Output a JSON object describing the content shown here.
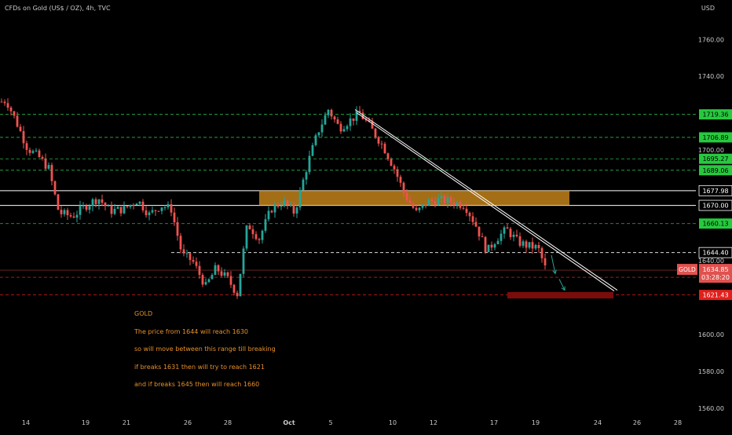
{
  "header": {
    "symbol": "CFDs on Gold (US$ / OZ), 4h, TVC",
    "currency": "USD"
  },
  "colors": {
    "up": "#26a69a",
    "down": "#ef5350",
    "level_green": "#2db84a",
    "level_red": "#e0201c",
    "zone": "#d9931e",
    "annotation": "#e8902a"
  },
  "chart_data": {
    "type": "candlestick",
    "title": "CFDs on Gold (US$ / OZ), 4h, TVC",
    "ylim": [
      1548,
      1778
    ],
    "y_ticks": [
      {
        "value": 1760,
        "label": "1760.00"
      },
      {
        "value": 1740,
        "label": "1740.00"
      },
      {
        "value": 1700,
        "label": "1700.00"
      },
      {
        "value": 1640,
        "label": "1640.00"
      },
      {
        "value": 1600,
        "label": "1600.00"
      },
      {
        "value": 1580,
        "label": "1580.00"
      },
      {
        "value": 1560,
        "label": "1560.00"
      }
    ],
    "x_ticks": [
      "14",
      "19",
      "21",
      "26",
      "28",
      "Oct",
      "5",
      "10",
      "12",
      "17",
      "19",
      "24",
      "26",
      "28"
    ],
    "path": [
      [
        0,
        1726
      ],
      [
        8,
        1727
      ],
      [
        20,
        1716
      ],
      [
        35,
        1701
      ],
      [
        50,
        1696
      ],
      [
        62,
        1690
      ],
      [
        75,
        1666
      ],
      [
        92,
        1664
      ],
      [
        110,
        1670
      ],
      [
        125,
        1674
      ],
      [
        140,
        1667
      ],
      [
        158,
        1668
      ],
      [
        175,
        1673
      ],
      [
        190,
        1665
      ],
      [
        205,
        1670
      ],
      [
        218,
        1668
      ],
      [
        232,
        1643
      ],
      [
        245,
        1640
      ],
      [
        262,
        1626
      ],
      [
        275,
        1636
      ],
      [
        290,
        1630
      ],
      [
        302,
        1622
      ],
      [
        315,
        1660
      ],
      [
        330,
        1652
      ],
      [
        345,
        1668
      ],
      [
        360,
        1672
      ],
      [
        375,
        1666
      ],
      [
        392,
        1693
      ],
      [
        405,
        1710
      ],
      [
        418,
        1722
      ],
      [
        432,
        1712
      ],
      [
        445,
        1716
      ],
      [
        458,
        1720
      ],
      [
        472,
        1712
      ],
      [
        488,
        1702
      ],
      [
        502,
        1690
      ],
      [
        515,
        1676
      ],
      [
        530,
        1666
      ],
      [
        545,
        1672
      ],
      [
        560,
        1673
      ],
      [
        575,
        1672
      ],
      [
        592,
        1670
      ],
      [
        605,
        1660
      ],
      [
        620,
        1645
      ],
      [
        632,
        1652
      ],
      [
        645,
        1657
      ],
      [
        660,
        1650
      ],
      [
        672,
        1648
      ],
      [
        685,
        1647
      ],
      [
        695,
        1635
      ]
    ],
    "levels": [
      {
        "value": 1719.36,
        "label": "1719.36",
        "style": "green-dashed"
      },
      {
        "value": 1706.89,
        "label": "1706.89",
        "style": "green-dashed"
      },
      {
        "value": 1695.27,
        "label": "1695.27",
        "style": "green-dashed"
      },
      {
        "value": 1689.06,
        "label": "1689.06",
        "style": "green-dashed"
      },
      {
        "value": 1677.98,
        "label": "1677.98",
        "style": "white-solid"
      },
      {
        "value": 1670.0,
        "label": "1670.00",
        "style": "white-solid"
      },
      {
        "value": 1660.13,
        "label": "1660.13",
        "style": "green-dashed"
      },
      {
        "value": 1644.4,
        "label": "1644.40",
        "style": "white-dashed"
      },
      {
        "value": 1631.0,
        "label": "1631.00",
        "style": "red-dashed"
      },
      {
        "value": 1621.43,
        "label": "1621.43",
        "style": "red-dashed"
      }
    ],
    "current_price": {
      "symbol": "GOLD",
      "value": 1634.85,
      "label": "1634.85",
      "countdown": "03:28:20"
    },
    "zones": [
      {
        "from": 1670.0,
        "to": 1677.98,
        "color": "#d9931e"
      },
      {
        "from": 1619.5,
        "to": 1623.0,
        "color": "#7a0c0c"
      }
    ],
    "trendline": {
      "start": [
        452,
        1722
      ],
      "end": [
        786,
        1624
      ]
    },
    "forecast_arrows": [
      {
        "from": [
          702,
          1643
        ],
        "to": [
          707,
          1633
        ]
      },
      {
        "from": [
          712,
          1630
        ],
        "to": [
          719,
          1624
        ]
      }
    ]
  },
  "annotations": [
    "GOLD",
    "The price from 1644 will reach 1630",
    "so will move between this range till breaking",
    "if breaks 1631 then will try to reach 1621",
    "and if breaks 1645 then will reach 1660"
  ]
}
